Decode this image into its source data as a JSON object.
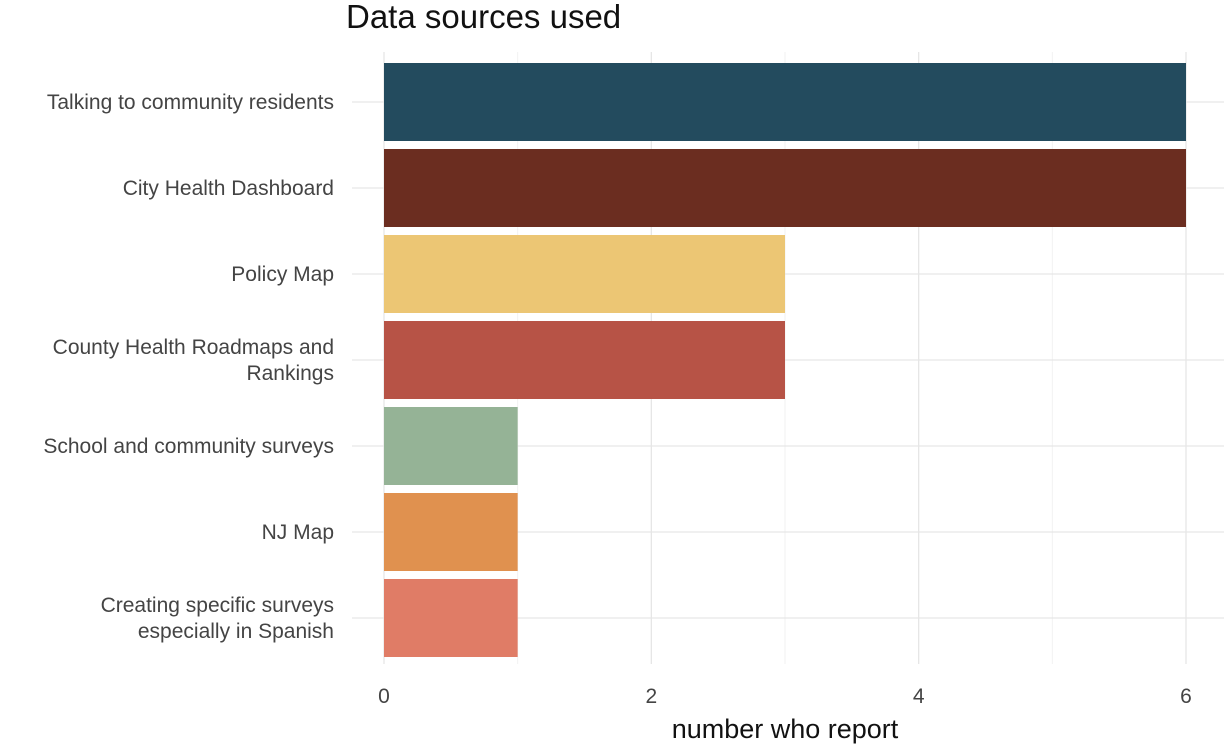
{
  "chart_data": {
    "type": "bar",
    "orientation": "horizontal",
    "title": "Data sources used",
    "xlabel": "number who report",
    "ylabel": "",
    "categories": [
      "Talking to community residents",
      "City Health Dashboard",
      "Policy Map",
      "County Health Roadmaps and Rankings",
      "School and community surveys",
      "NJ Map",
      "Creating specific surveys especially in Spanish"
    ],
    "category_lines": [
      [
        "Talking to community residents"
      ],
      [
        "City Health Dashboard"
      ],
      [
        "Policy Map"
      ],
      [
        "County Health Roadmaps and",
        "Rankings"
      ],
      [
        "School and community surveys"
      ],
      [
        "NJ Map"
      ],
      [
        "Creating specific surveys",
        "especially in Spanish"
      ]
    ],
    "values": [
      6,
      6,
      3,
      3,
      1,
      1,
      1
    ],
    "colors": [
      "#234b5e",
      "#6b2d20",
      "#ecc674",
      "#b75346",
      "#95b396",
      "#e0914f",
      "#e07c66"
    ],
    "xlim": [
      0,
      6.3
    ],
    "xticks": [
      0,
      2,
      4,
      6
    ],
    "grid": true,
    "legend": "none"
  }
}
